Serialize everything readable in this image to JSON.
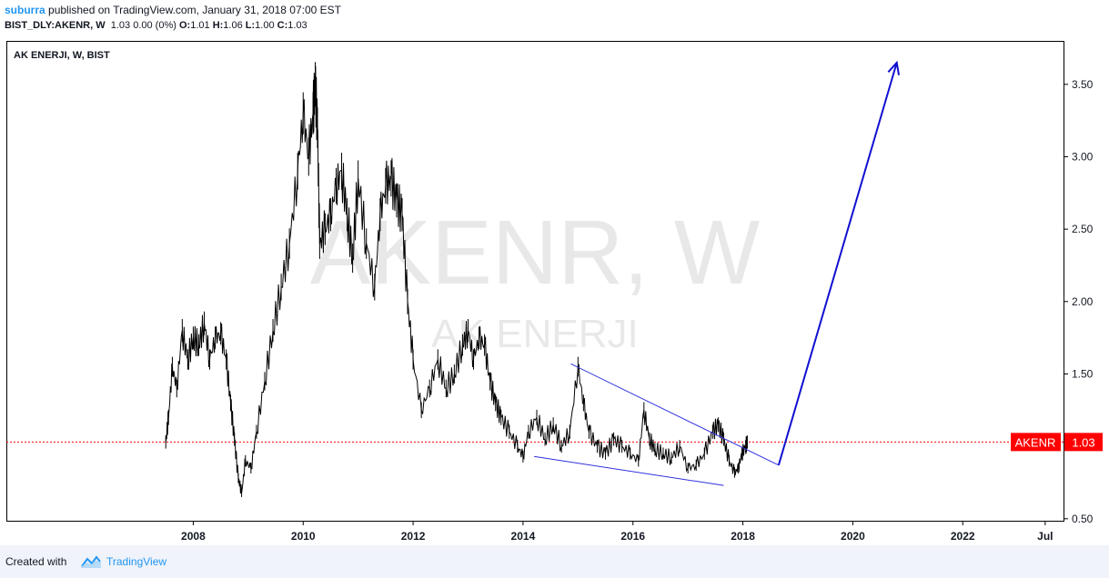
{
  "header": {
    "author": "suburra",
    "published_text": " published on TradingView.com, January 31, 2018 07:00 EST",
    "symbol": "BIST_DLY:AKENR, W",
    "quote_change": "1.03 0.00 (0%)",
    "ohlc_o_label": "O:",
    "ohlc_o": "1.01",
    "ohlc_h_label": "H:",
    "ohlc_h": "1.06",
    "ohlc_l_label": "L:",
    "ohlc_l": "1.00",
    "ohlc_c_label": "C:",
    "ohlc_c": "1.03"
  },
  "chart_data": {
    "type": "line",
    "pane_title": "AK ENERJI, W, BIST",
    "watermark_symbol": "AKENR, W",
    "watermark_name": "AK ENERJI",
    "x_ticks": [
      "2008",
      "2010",
      "2012",
      "2014",
      "2016",
      "2018",
      "2020",
      "2022",
      "Jul"
    ],
    "y_ticks": [
      "3.50",
      "3.00",
      "2.50",
      "2.00",
      "1.50",
      "0.50"
    ],
    "ylim": [
      0.48,
      3.8
    ],
    "xlim": [
      2004.6,
      2023.85
    ],
    "last_value_label": "AKENR",
    "last_value": "1.03",
    "last_value_num": 1.03,
    "colors": {
      "price": "#000000",
      "trendline": "#3030e0",
      "arrow": "#1010d0",
      "last_value_bg": "#ff0000",
      "last_value_line": "#ff0000"
    },
    "series": [
      {
        "x": [
          2007.5,
          2007.55,
          2007.62,
          2007.7,
          2007.8,
          2007.9,
          2008.0,
          2008.1,
          2008.2,
          2008.3,
          2008.4,
          2008.5,
          2008.6,
          2008.68,
          2008.75,
          2008.82,
          2008.88,
          2008.95,
          2009.05,
          2009.15,
          2009.3,
          2009.45,
          2009.6,
          2009.75,
          2009.9,
          2010.0,
          2010.1,
          2010.18,
          2010.22,
          2010.26,
          2010.3,
          2010.4,
          2010.5,
          2010.6,
          2010.7,
          2010.8,
          2010.9,
          2011.0,
          2011.15,
          2011.3,
          2011.4,
          2011.5,
          2011.6,
          2011.7,
          2011.8,
          2011.9,
          2012.0,
          2012.15,
          2012.3,
          2012.45,
          2012.6,
          2012.75,
          2012.9,
          2013.0,
          2013.1,
          2013.2,
          2013.3,
          2013.4,
          2013.5,
          2013.6,
          2013.75,
          2013.9,
          2014.0,
          2014.1,
          2014.25,
          2014.4,
          2014.55,
          2014.7,
          2014.85,
          2015.0,
          2015.1,
          2015.2,
          2015.35,
          2015.5,
          2015.65,
          2015.8,
          2015.95,
          2016.1,
          2016.2,
          2016.3,
          2016.4,
          2016.55,
          2016.7,
          2016.85,
          2017.0,
          2017.15,
          2017.3,
          2017.45,
          2017.55,
          2017.65,
          2017.75,
          2017.85,
          2017.92,
          2017.98,
          2018.05,
          2018.08
        ],
        "y": [
          1.03,
          1.2,
          1.55,
          1.4,
          1.8,
          1.6,
          1.75,
          1.7,
          1.85,
          1.6,
          1.75,
          1.78,
          1.6,
          1.3,
          1.05,
          0.78,
          0.68,
          0.9,
          0.85,
          1.1,
          1.45,
          1.8,
          2.1,
          2.4,
          2.9,
          3.3,
          3.0,
          3.3,
          3.5,
          3.2,
          2.4,
          2.5,
          2.6,
          2.8,
          2.9,
          2.6,
          2.3,
          2.85,
          2.4,
          2.1,
          2.6,
          2.8,
          2.85,
          2.7,
          2.6,
          2.0,
          1.6,
          1.25,
          1.4,
          1.6,
          1.4,
          1.5,
          1.7,
          1.8,
          1.6,
          1.75,
          1.7,
          1.45,
          1.3,
          1.2,
          1.1,
          1.0,
          0.93,
          1.1,
          1.2,
          1.05,
          1.15,
          1.0,
          1.1,
          1.55,
          1.3,
          1.1,
          1.0,
          0.95,
          1.05,
          1.0,
          0.95,
          0.9,
          1.25,
          1.05,
          0.98,
          0.95,
          0.92,
          1.0,
          0.85,
          0.87,
          0.95,
          1.1,
          1.15,
          1.05,
          0.9,
          0.82,
          0.85,
          0.95,
          1.0,
          1.03
        ]
      }
    ],
    "annotations": {
      "upper_trendline": {
        "x1": 2014.87,
        "y1": 1.57,
        "x2": 2018.65,
        "y2": 0.87
      },
      "lower_trendline": {
        "x1": 2014.2,
        "y1": 0.93,
        "x2": 2017.65,
        "y2": 0.73
      },
      "arrow": {
        "x1": 2018.65,
        "y1": 0.87,
        "x2": 2020.8,
        "y2": 3.65
      }
    }
  },
  "footer": {
    "created_with": "Created with",
    "brand": "TradingView"
  }
}
